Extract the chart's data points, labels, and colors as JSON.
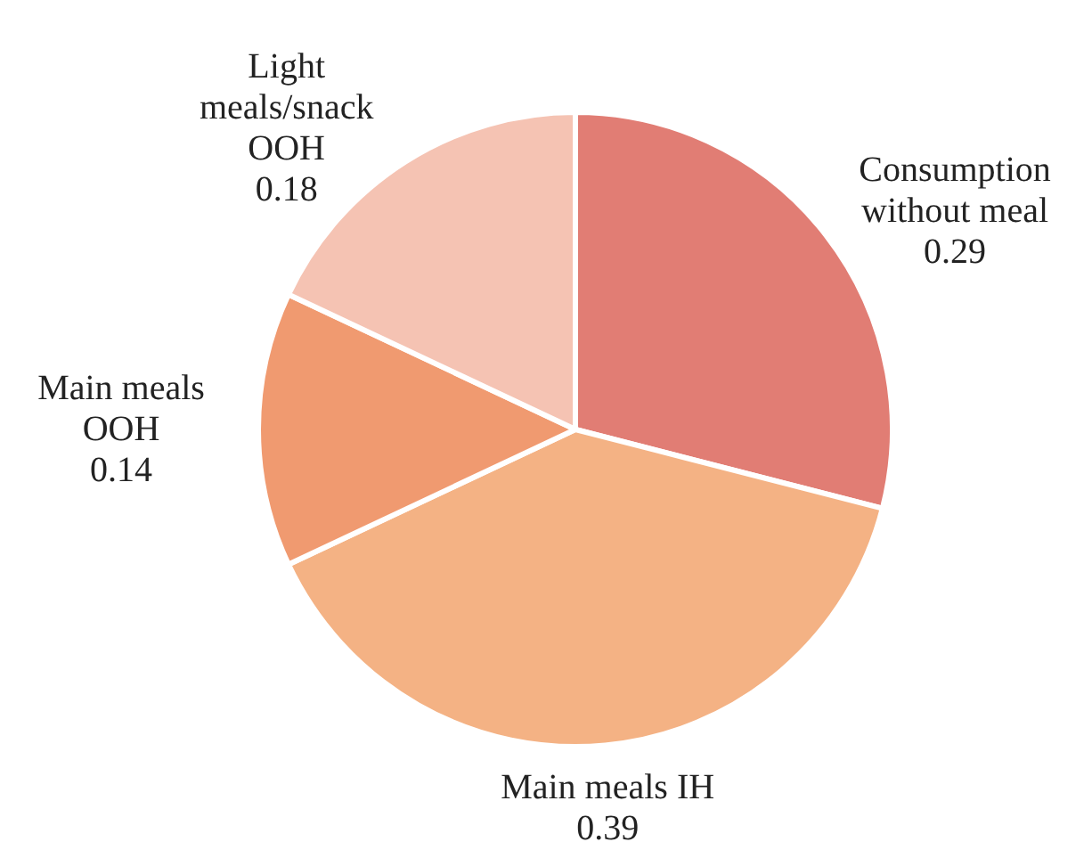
{
  "chart_data": {
    "type": "pie",
    "categories": [
      "Consumption without meal",
      "Main meals IH",
      "Main meals OOH",
      "Light meals/snack OOH"
    ],
    "values": [
      0.29,
      0.39,
      0.14,
      0.18
    ],
    "colors": [
      "#e17d74",
      "#f4b284",
      "#f09a70",
      "#f5c3b3"
    ],
    "data_labels": true
  }
}
